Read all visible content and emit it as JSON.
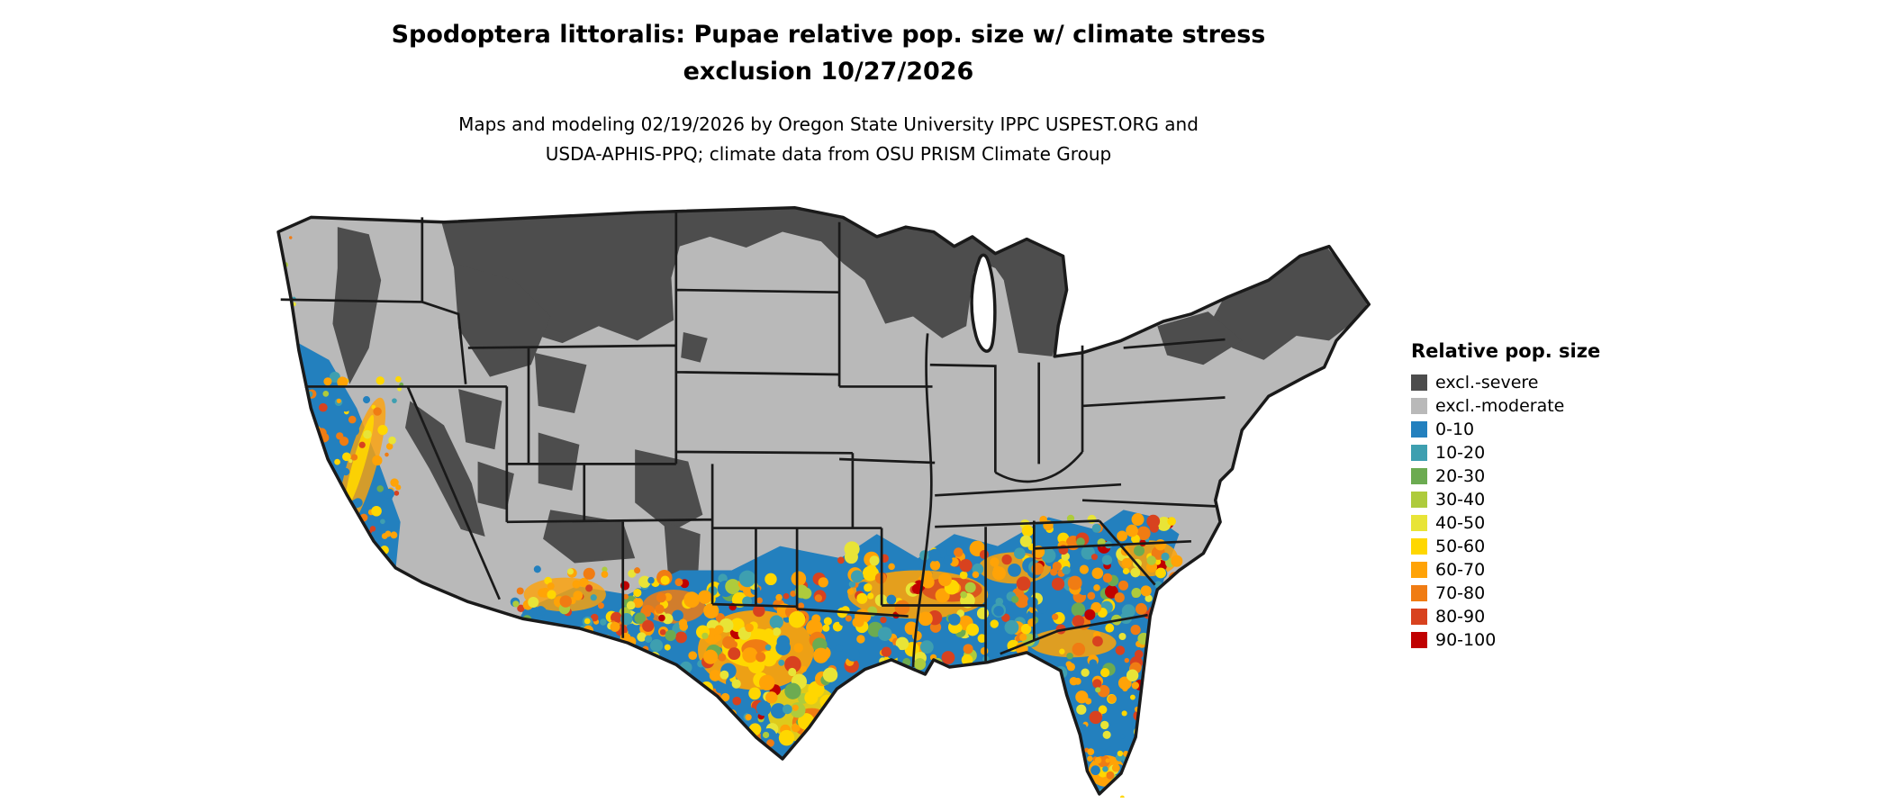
{
  "header": {
    "title_line1": "Spodoptera littoralis: Pupae relative pop. size w/ climate stress",
    "title_line2": "exclusion 10/27/2026",
    "subtitle_line1": "Maps and modeling 02/19/2026 by Oregon State University IPPC USPEST.ORG and",
    "subtitle_line2": "USDA-APHIS-PPQ; climate data from OSU PRISM Climate Group"
  },
  "legend": {
    "title": "Relative pop. size",
    "items": [
      {
        "label": "excl.-severe",
        "color": "#4D4D4D"
      },
      {
        "label": "excl.-moderate",
        "color": "#B9B9B9"
      },
      {
        "label": "0-10",
        "color": "#2380BE"
      },
      {
        "label": "10-20",
        "color": "#3E9FB0"
      },
      {
        "label": "20-30",
        "color": "#6CAB51"
      },
      {
        "label": "30-40",
        "color": "#AECB3C"
      },
      {
        "label": "40-50",
        "color": "#E8E437"
      },
      {
        "label": "50-60",
        "color": "#FFD700"
      },
      {
        "label": "60-70",
        "color": "#FFA307"
      },
      {
        "label": "70-80",
        "color": "#F07C13"
      },
      {
        "label": "80-90",
        "color": "#D8421F"
      },
      {
        "label": "90-100",
        "color": "#C00000"
      }
    ]
  },
  "map": {
    "base_color": "#B9B9B9",
    "severe_color": "#4D4D4D",
    "border_color": "#1A1A1A",
    "background": "#FFFFFF"
  }
}
